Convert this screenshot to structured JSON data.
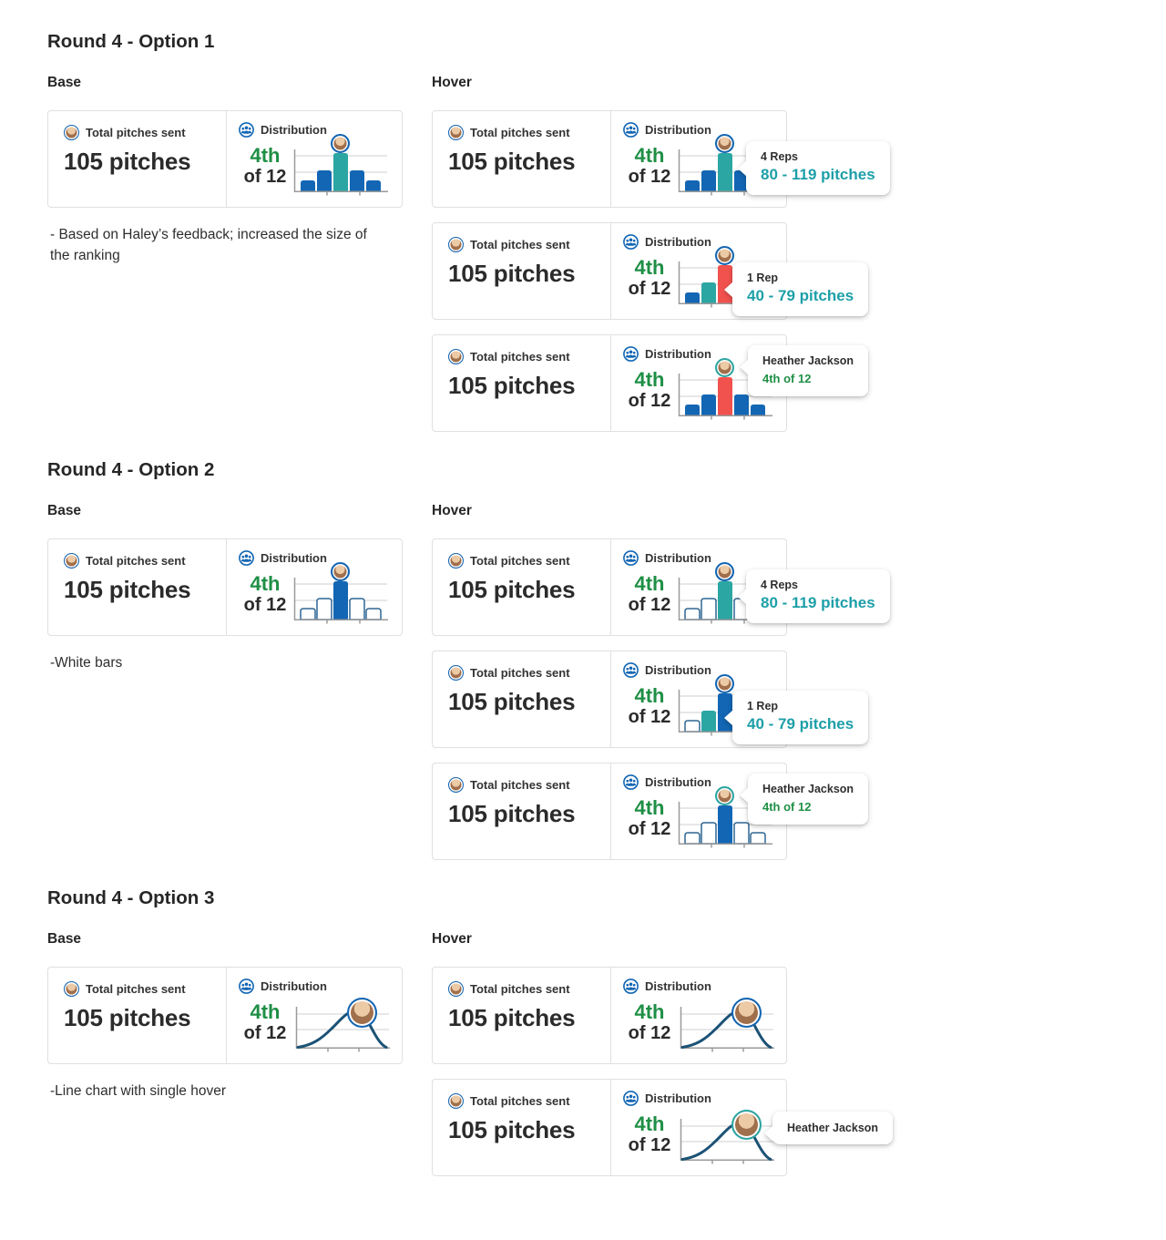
{
  "palette": {
    "blue": "#1266b4",
    "teal": "#2ba6a3",
    "red": "#f2524e",
    "navy": "#1b5276",
    "outline": "#2f6693",
    "green": "#1f8f45",
    "teal_text": "#1d9fa8",
    "grid": "#cfcfcf",
    "axis": "#9a9a9a"
  },
  "bar_fractions": [
    0.27,
    0.52,
    0.92,
    0.52,
    0.27
  ],
  "metric_card": {
    "total_label": "Total pitches sent",
    "total_value": "105 pitches",
    "distribution_label": "Distribution",
    "rank": "4th",
    "rank_of": "of 12"
  },
  "sections": [
    {
      "title": "Round 4 - Option 1",
      "base_label": "Base",
      "hover_label": "Hover",
      "note": "- Based on Haley’s feedback; increased the size of the ranking",
      "charts": {
        "base": {
          "type": "bar",
          "style": "filled",
          "bars": [
            "blue",
            "blue",
            "teal",
            "blue",
            "blue"
          ],
          "ring": "blue"
        },
        "hover1": {
          "type": "bar",
          "style": "filled",
          "bars": [
            "blue",
            "blue",
            "teal",
            "blue",
            "blue"
          ],
          "ring": "blue"
        },
        "hover2": {
          "type": "bar",
          "style": "filled",
          "bars": [
            "blue",
            "teal",
            "red",
            "blue",
            "blue"
          ],
          "ring": "blue"
        },
        "hover3": {
          "type": "bar",
          "style": "filled",
          "bars": [
            "blue",
            "blue",
            "red",
            "blue",
            "blue"
          ],
          "ring": "teal"
        }
      },
      "tooltips": {
        "hover1": {
          "title": "4 Reps",
          "value": "80 - 119 pitches"
        },
        "hover2": {
          "title": "1 Rep",
          "value": "40 - 79 pitches"
        },
        "hover3": {
          "title": "Heather Jackson",
          "value": "4th of 12"
        }
      }
    },
    {
      "title": "Round 4 - Option 2",
      "base_label": "Base",
      "hover_label": "Hover",
      "note": "-White bars",
      "charts": {
        "base": {
          "type": "bar",
          "style": "outline",
          "bars": [
            "white",
            "white",
            "blue",
            "white",
            "white"
          ],
          "ring": "blue"
        },
        "hover1": {
          "type": "bar",
          "style": "outline",
          "bars": [
            "white",
            "white",
            "teal",
            "white",
            "white"
          ],
          "ring": "blue"
        },
        "hover2": {
          "type": "bar",
          "style": "outline",
          "bars": [
            "white",
            "teal",
            "blue",
            "white",
            "white"
          ],
          "ring": "blue"
        },
        "hover3": {
          "type": "bar",
          "style": "outline",
          "bars": [
            "white",
            "white",
            "blue",
            "white",
            "white"
          ],
          "ring": "teal"
        }
      },
      "tooltips": {
        "hover1": {
          "title": "4 Reps",
          "value": "80 - 119 pitches"
        },
        "hover2": {
          "title": "1 Rep",
          "value": "40 - 79 pitches"
        },
        "hover3": {
          "title": "Heather Jackson",
          "value": "4th of 12"
        }
      }
    },
    {
      "title": "Round 4 - Option 3",
      "base_label": "Base",
      "hover_label": "Hover",
      "note": "-Line chart with single hover",
      "charts": {
        "base": {
          "type": "line",
          "ring": "blue"
        },
        "hover1": {
          "type": "line",
          "ring": "blue"
        },
        "hover2": {
          "type": "line",
          "ring": "teal"
        }
      },
      "tooltips": {
        "hover2": {
          "title": "Heather Jackson"
        }
      }
    }
  ]
}
